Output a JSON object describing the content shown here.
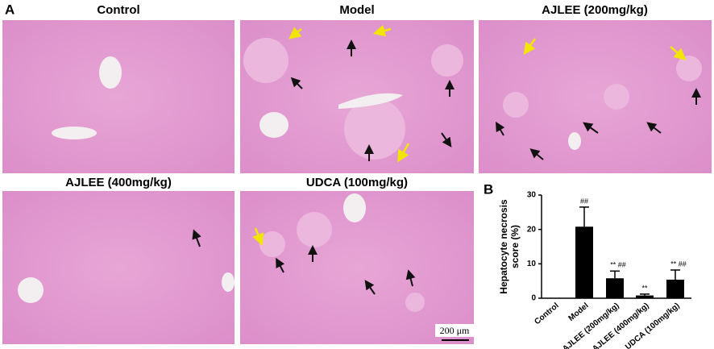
{
  "figure": {
    "panel_a": {
      "label": "A",
      "panels": [
        {
          "title": "Control"
        },
        {
          "title": "Model"
        },
        {
          "title": "AJLEE (200mg/kg)"
        },
        {
          "title": "AJLEE (400mg/kg)"
        },
        {
          "title": "UDCA (100mg/kg)"
        }
      ],
      "scale_bar": "200 μm"
    },
    "panel_b": {
      "label": "B"
    }
  },
  "chart_data": {
    "type": "bar",
    "ylabel": [
      "Hepatocyte necrosis",
      "score (%)"
    ],
    "categories": [
      "Control",
      "Model",
      "AJLEE (200mg/kg)",
      "AJLEE (400mg/kg)",
      "UDCA (100mg/kg)"
    ],
    "values": [
      0,
      20.8,
      5.8,
      0.8,
      5.4
    ],
    "errors": [
      0,
      5.7,
      2.1,
      0.4,
      2.8
    ],
    "annotations": [
      null,
      "##",
      "** ##",
      "**",
      "** ##"
    ],
    "color": "#000000",
    "ylim": [
      0,
      30
    ],
    "yticks": [
      0,
      10,
      20,
      30
    ]
  }
}
